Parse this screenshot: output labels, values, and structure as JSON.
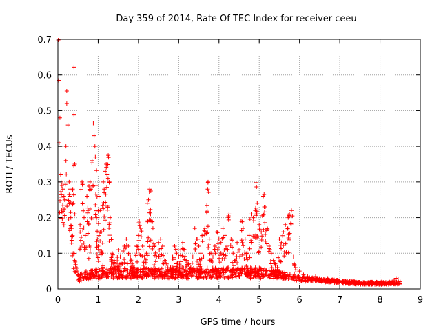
{
  "chart_data": {
    "type": "scatter",
    "title": "Day 359 of 2014, Rate Of TEC Index for receiver ceeu",
    "xlabel": "GPS time / hours",
    "ylabel": "ROTI / TECUs",
    "xlim": [
      0,
      9
    ],
    "ylim": [
      0,
      0.7
    ],
    "xticks": [
      "0",
      "1",
      "2",
      "3",
      "4",
      "5",
      "6",
      "7",
      "8",
      "9"
    ],
    "yticks": [
      "0",
      "0.1",
      "0.2",
      "0.3",
      "0.4",
      "0.5",
      "0.6",
      "0.7"
    ],
    "grid": true,
    "marker": "+",
    "color": "#ff0000",
    "series": [
      {
        "name": "ROTI",
        "points": [
          [
            0.01,
            0.698
          ],
          [
            0.02,
            0.585
          ],
          [
            0.03,
            0.41
          ],
          [
            0.05,
            0.48
          ],
          [
            0.07,
            0.32
          ],
          [
            0.08,
            0.3
          ],
          [
            0.1,
            0.29
          ],
          [
            0.12,
            0.28
          ],
          [
            0.15,
            0.26
          ],
          [
            0.18,
            0.25
          ],
          [
            0.2,
            0.36
          ],
          [
            0.2,
            0.4
          ],
          [
            0.22,
            0.555
          ],
          [
            0.22,
            0.52
          ],
          [
            0.25,
            0.46
          ],
          [
            0.28,
            0.3
          ],
          [
            0.3,
            0.28
          ],
          [
            0.3,
            0.26
          ],
          [
            0.32,
            0.2
          ],
          [
            0.34,
            0.17
          ],
          [
            0.37,
            0.28
          ],
          [
            0.38,
            0.1
          ],
          [
            0.4,
            0.622
          ],
          [
            0.4,
            0.488
          ],
          [
            0.42,
            0.35
          ],
          [
            0.42,
            0.08
          ],
          [
            0.45,
            0.06
          ],
          [
            0.48,
            0.05
          ],
          [
            0.5,
            0.04
          ],
          [
            0.52,
            0.04
          ],
          [
            0.55,
            0.18
          ],
          [
            0.57,
            0.17
          ],
          [
            0.6,
            0.3
          ],
          [
            0.62,
            0.24
          ],
          [
            0.65,
            0.2
          ],
          [
            0.68,
            0.15
          ],
          [
            0.7,
            0.05
          ],
          [
            0.72,
            0.26
          ],
          [
            0.75,
            0.22
          ],
          [
            0.78,
            0.12
          ],
          [
            0.8,
            0.3
          ],
          [
            0.82,
            0.28
          ],
          [
            0.85,
            0.36
          ],
          [
            0.88,
            0.465
          ],
          [
            0.9,
            0.43
          ],
          [
            0.92,
            0.4
          ],
          [
            0.93,
            0.37
          ],
          [
            0.95,
            0.29
          ],
          [
            0.96,
            0.2
          ],
          [
            0.98,
            0.14
          ],
          [
            1.0,
            0.12
          ],
          [
            1.02,
            0.26
          ],
          [
            1.05,
            0.22
          ],
          [
            1.08,
            0.16
          ],
          [
            1.1,
            0.1
          ],
          [
            1.13,
            0.3
          ],
          [
            1.15,
            0.28
          ],
          [
            1.18,
            0.33
          ],
          [
            1.2,
            0.35
          ],
          [
            1.22,
            0.32
          ],
          [
            1.25,
            0.375
          ],
          [
            1.28,
            0.3
          ],
          [
            1.3,
            0.2
          ],
          [
            1.33,
            0.14
          ],
          [
            1.35,
            0.1
          ],
          [
            1.4,
            0.08
          ],
          [
            1.45,
            0.07
          ],
          [
            1.5,
            0.11
          ],
          [
            1.55,
            0.09
          ],
          [
            1.6,
            0.07
          ],
          [
            1.65,
            0.12
          ],
          [
            1.7,
            0.14
          ],
          [
            1.75,
            0.12
          ],
          [
            1.8,
            0.09
          ],
          [
            1.85,
            0.07
          ],
          [
            1.9,
            0.06
          ],
          [
            1.95,
            0.12
          ],
          [
            2.0,
            0.15
          ],
          [
            2.02,
            0.19
          ],
          [
            2.05,
            0.17
          ],
          [
            2.1,
            0.12
          ],
          [
            2.15,
            0.09
          ],
          [
            2.2,
            0.1
          ],
          [
            2.22,
            0.24
          ],
          [
            2.25,
            0.25
          ],
          [
            2.28,
            0.28
          ],
          [
            2.3,
            0.21
          ],
          [
            2.33,
            0.19
          ],
          [
            2.36,
            0.17
          ],
          [
            2.4,
            0.12
          ],
          [
            2.45,
            0.09
          ],
          [
            2.5,
            0.13
          ],
          [
            2.55,
            0.14
          ],
          [
            2.6,
            0.12
          ],
          [
            2.65,
            0.08
          ],
          [
            2.7,
            0.07
          ],
          [
            2.75,
            0.05
          ],
          [
            2.8,
            0.06
          ],
          [
            2.85,
            0.09
          ],
          [
            2.9,
            0.12
          ],
          [
            2.95,
            0.1
          ],
          [
            3.0,
            0.09
          ],
          [
            3.05,
            0.11
          ],
          [
            3.1,
            0.13
          ],
          [
            3.15,
            0.11
          ],
          [
            3.2,
            0.08
          ],
          [
            3.25,
            0.07
          ],
          [
            3.3,
            0.06
          ],
          [
            3.35,
            0.09
          ],
          [
            3.4,
            0.17
          ],
          [
            3.45,
            0.14
          ],
          [
            3.5,
            0.12
          ],
          [
            3.55,
            0.1
          ],
          [
            3.6,
            0.15
          ],
          [
            3.65,
            0.17
          ],
          [
            3.7,
            0.235
          ],
          [
            3.72,
            0.28
          ],
          [
            3.73,
            0.3
          ],
          [
            3.76,
            0.14
          ],
          [
            3.8,
            0.1
          ],
          [
            3.85,
            0.09
          ],
          [
            3.9,
            0.12
          ],
          [
            3.95,
            0.16
          ],
          [
            4.0,
            0.14
          ],
          [
            4.05,
            0.13
          ],
          [
            4.1,
            0.17
          ],
          [
            4.15,
            0.15
          ],
          [
            4.2,
            0.12
          ],
          [
            4.25,
            0.21
          ],
          [
            4.3,
            0.14
          ],
          [
            4.35,
            0.1
          ],
          [
            4.4,
            0.08
          ],
          [
            4.45,
            0.13
          ],
          [
            4.5,
            0.11
          ],
          [
            4.55,
            0.19
          ],
          [
            4.6,
            0.17
          ],
          [
            4.65,
            0.14
          ],
          [
            4.7,
            0.1
          ],
          [
            4.75,
            0.15
          ],
          [
            4.8,
            0.21
          ],
          [
            4.85,
            0.2
          ],
          [
            4.9,
            0.22
          ],
          [
            4.92,
            0.298
          ],
          [
            4.95,
            0.24
          ],
          [
            5.0,
            0.18
          ],
          [
            5.05,
            0.16
          ],
          [
            5.1,
            0.26
          ],
          [
            5.12,
            0.265
          ],
          [
            5.15,
            0.23
          ],
          [
            5.2,
            0.17
          ],
          [
            5.25,
            0.12
          ],
          [
            5.3,
            0.1
          ],
          [
            5.35,
            0.08
          ],
          [
            5.4,
            0.07
          ],
          [
            5.45,
            0.06
          ],
          [
            5.5,
            0.14
          ],
          [
            5.55,
            0.13
          ],
          [
            5.6,
            0.16
          ],
          [
            5.65,
            0.18
          ],
          [
            5.7,
            0.17
          ],
          [
            5.72,
            0.2
          ],
          [
            5.75,
            0.21
          ],
          [
            5.8,
            0.22
          ],
          [
            5.85,
            0.09
          ],
          [
            5.9,
            0.06
          ],
          [
            6.0,
            0.05
          ],
          [
            6.1,
            0.04
          ],
          [
            6.2,
            0.035
          ],
          [
            6.3,
            0.03
          ],
          [
            6.4,
            0.035
          ],
          [
            6.5,
            0.03
          ],
          [
            6.6,
            0.028
          ],
          [
            6.7,
            0.03
          ],
          [
            6.8,
            0.025
          ],
          [
            6.9,
            0.02
          ],
          [
            7.0,
            0.02
          ],
          [
            7.1,
            0.022
          ],
          [
            7.2,
            0.018
          ],
          [
            7.3,
            0.02
          ],
          [
            7.4,
            0.018
          ],
          [
            7.5,
            0.016
          ],
          [
            7.6,
            0.018
          ],
          [
            7.7,
            0.016
          ],
          [
            7.8,
            0.015
          ],
          [
            7.9,
            0.017
          ],
          [
            8.0,
            0.018
          ],
          [
            8.1,
            0.016
          ],
          [
            8.2,
            0.018
          ],
          [
            8.3,
            0.02
          ],
          [
            8.35,
            0.025
          ],
          [
            8.4,
            0.03
          ],
          [
            8.45,
            0.028
          ],
          [
            8.5,
            0.02
          ]
        ]
      }
    ],
    "floor_band": [
      [
        0.5,
        0.02,
        0.04
      ],
      [
        1.0,
        0.03,
        0.06
      ],
      [
        1.5,
        0.03,
        0.06
      ],
      [
        2.0,
        0.03,
        0.06
      ],
      [
        2.5,
        0.03,
        0.06
      ],
      [
        3.0,
        0.03,
        0.06
      ],
      [
        3.5,
        0.03,
        0.06
      ],
      [
        4.0,
        0.03,
        0.06
      ],
      [
        4.5,
        0.03,
        0.06
      ],
      [
        5.0,
        0.03,
        0.06
      ],
      [
        5.5,
        0.03,
        0.05
      ],
      [
        6.0,
        0.02,
        0.035
      ],
      [
        6.5,
        0.02,
        0.03
      ],
      [
        7.0,
        0.015,
        0.025
      ],
      [
        7.5,
        0.012,
        0.02
      ],
      [
        8.0,
        0.012,
        0.02
      ],
      [
        8.5,
        0.012,
        0.02
      ]
    ]
  }
}
